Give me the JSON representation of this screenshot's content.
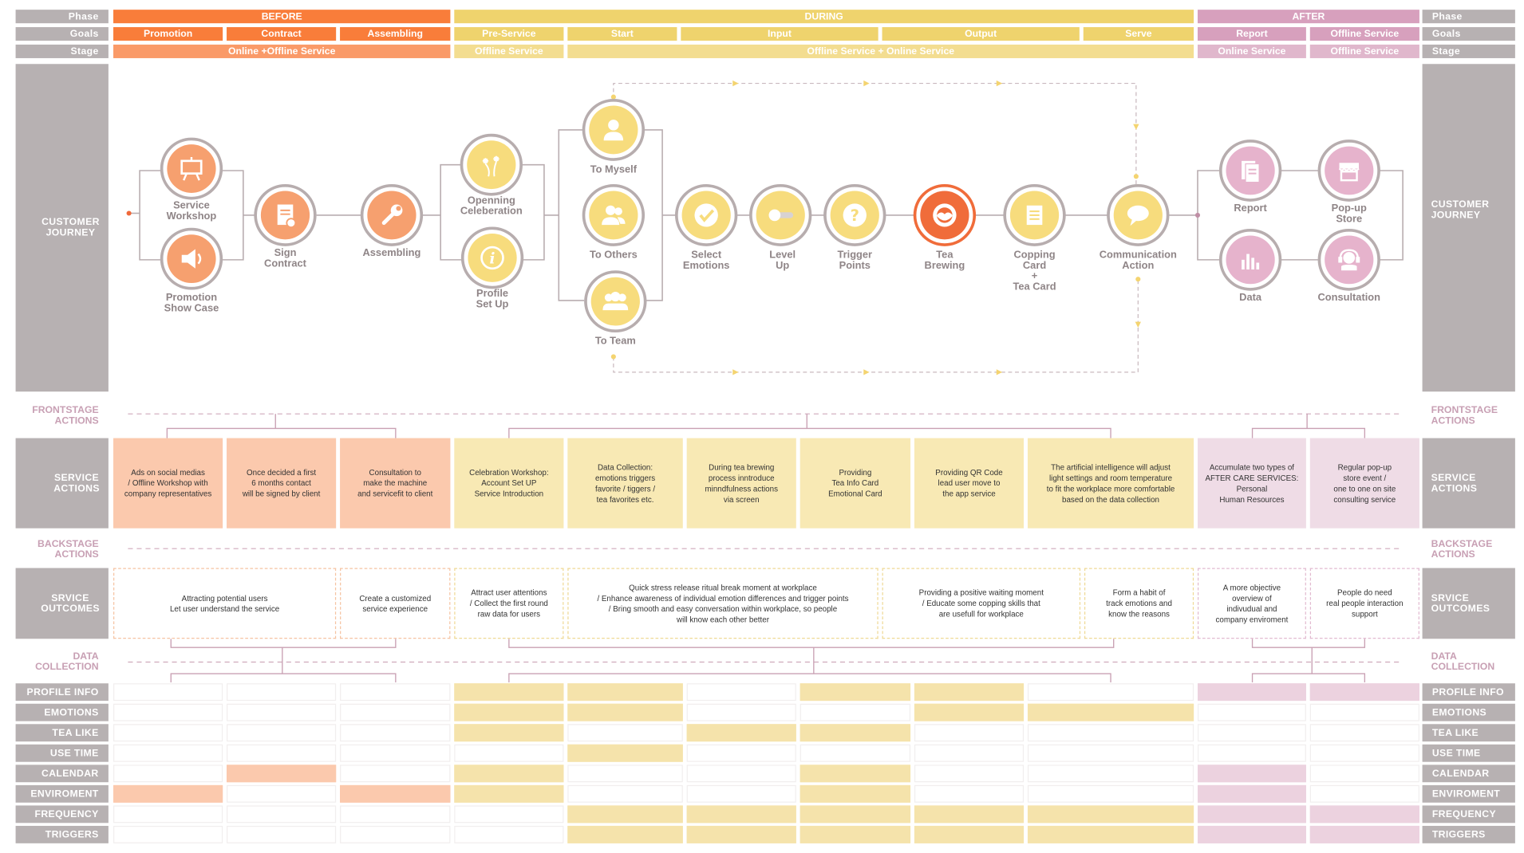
{
  "row_labels": {
    "phase": "Phase",
    "goals": "Goals",
    "stage": "Stage",
    "customer_journey": "CUSTOMER\nJOURNEY",
    "frontstage": "FRONTSTAGE\nACTIONS",
    "service_actions": "SERVICE\nACTIONS",
    "backstage": "BACKSTAGE\nACTIONS",
    "outcomes": "SRVICE\nOUTCOMES",
    "data_collection": "DATA\nCOLLECTION"
  },
  "phases": [
    "BEFORE",
    "DURING",
    "AFTER"
  ],
  "goals": [
    "Promotion",
    "Contract",
    "Assembling",
    "Pre-Service",
    "Start",
    "Input",
    "Output",
    "Serve",
    "Report",
    "Offline Service"
  ],
  "stages": [
    "Online +Offline Service",
    "Offline Service",
    "Offline Service + Online Service",
    "Online Service",
    "Offline Service"
  ],
  "journey": {
    "service_workshop": {
      "label": "Service\nWorkshop",
      "icon": "easel-icon"
    },
    "promotion_show_case": {
      "label": "Promotion\nShow Case",
      "icon": "megaphone-icon"
    },
    "sign_contract": {
      "label": "Sign\nContract",
      "icon": "document-icon"
    },
    "assembling": {
      "label": "Assembling",
      "icon": "wrench-icon"
    },
    "openning": {
      "label": "Openning\nCeleberation",
      "icon": "fireworks-icon"
    },
    "profile_set_up": {
      "label": "Profile\nSet Up",
      "icon": "info-icon"
    },
    "to_myself": {
      "label": "To Myself",
      "icon": "user-icon"
    },
    "to_others": {
      "label": "To Others",
      "icon": "users-icon"
    },
    "to_team": {
      "label": "To Team",
      "icon": "team-icon"
    },
    "select_emotions": {
      "label": "Select\nEmotions",
      "icon": "check-icon"
    },
    "level_up": {
      "label": "Level\nUp",
      "icon": "slider-icon"
    },
    "trigger_points": {
      "label": "Trigger\nPoints",
      "icon": "question-icon"
    },
    "tea_brewing": {
      "label": "Tea\nBrewing",
      "icon": "tea-icon"
    },
    "copping_card": {
      "label": "Copping\nCard\n+\nTea Card",
      "icon": "card-icon"
    },
    "communication": {
      "label": "Communication\nAction",
      "icon": "chat-icon"
    },
    "report": {
      "label": "Report",
      "icon": "report-icon"
    },
    "data": {
      "label": "Data",
      "icon": "bar-chart-icon"
    },
    "popup_store": {
      "label": "Pop-up\nStore",
      "icon": "store-icon"
    },
    "consultation": {
      "label": "Consultation",
      "icon": "headset-icon"
    }
  },
  "service_actions": [
    "Ads on social medias\n/ Offline Workshop with\ncompany representatives",
    "Once decided a first\n6 months contact\nwill be signed by client",
    "Consultation to\nmake the machine\nand servicefit to client",
    "Celebration Workshop:\nAccount Set UP\nService Introduction",
    "Data Collection:\nemotions triggers\nfavorite / tiggers /\ntea favorites etc.",
    "During tea brewing\nprocess inntroduce\nminndfulness actions\nvia screen",
    "Providing\nTea Info Card\nEmotional Card",
    "Providing QR Code\nlead user move to\nthe app service",
    "The artificial intelligence will adjust\nlight settings and room temperature\nto fit the workplace more comfortable\nbased on the data collection",
    "Accumulate two types of\nAFTER CARE SERVICES:\nPersonal\nHuman Resources",
    "Regular pop-up\nstore event /\none to one on site\nconsulting service"
  ],
  "outcomes": [
    "Attracting potential users\nLet user understand the service",
    "Create a customized\nservice experience",
    "Attract user attentions\n/ Collect the first round\nraw data for users",
    "Quick stress release ritual break moment at workplace\n/ Enhance awareness of individual emotion differences and trigger points\n/ Bring smooth and easy conversation within workplace, so people\nwill know each other better",
    "Providing a positive waiting moment\n/ Educate some copping skills that\nare usefull for workplace",
    "Form a habit of\ntrack emotions and\nknow the reasons",
    "A more objective\noverview of\nindivudual and\ncompany enviroment",
    "People do need\nreal people interaction\nsupport"
  ],
  "data_rows": [
    {
      "label": "PROFILE  INFO",
      "cells": [
        0,
        0,
        0,
        1,
        1,
        0,
        1,
        1,
        0,
        1,
        1
      ]
    },
    {
      "label": "EMOTIONS",
      "cells": [
        0,
        0,
        0,
        1,
        1,
        0,
        0,
        1,
        1,
        0,
        0
      ]
    },
    {
      "label": "TEA LIKE",
      "cells": [
        0,
        0,
        0,
        1,
        0,
        1,
        1,
        0,
        0,
        0,
        0
      ]
    },
    {
      "label": "USE TIME",
      "cells": [
        0,
        0,
        0,
        0,
        1,
        0,
        0,
        0,
        0,
        0,
        0
      ]
    },
    {
      "label": "CALENDAR",
      "cells": [
        0,
        1,
        0,
        1,
        0,
        0,
        1,
        0,
        0,
        1,
        0
      ]
    },
    {
      "label": "ENVIROMENT",
      "cells": [
        1,
        0,
        1,
        1,
        0,
        0,
        1,
        0,
        0,
        1,
        0
      ]
    },
    {
      "label": "FREQUENCY",
      "cells": [
        0,
        0,
        0,
        0,
        1,
        1,
        1,
        1,
        1,
        1,
        1
      ]
    },
    {
      "label": "TRIGGERS",
      "cells": [
        0,
        0,
        0,
        0,
        1,
        1,
        1,
        1,
        1,
        1,
        1
      ]
    }
  ],
  "colors": {
    "orange": "#f97d3a",
    "yellow": "#efd36d",
    "pink": "#d7a0bd",
    "grey": "#b7b1b2",
    "connector": "#c08fa6"
  }
}
